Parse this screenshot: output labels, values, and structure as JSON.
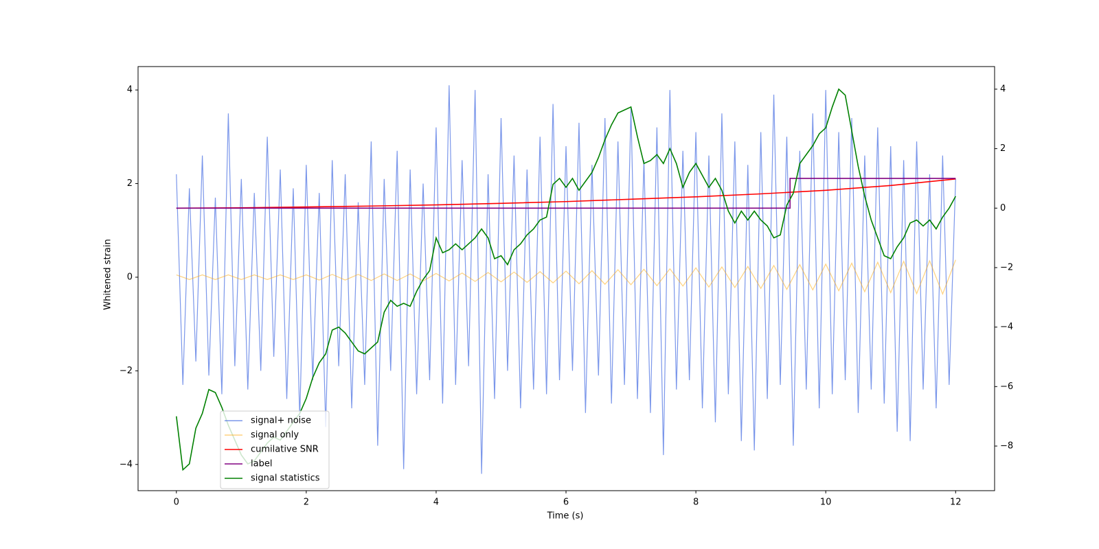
{
  "chart_data": {
    "type": "line",
    "xlabel": "Time (s)",
    "ylabel": "Whitened strain",
    "xlim": [
      -0.59,
      12.6
    ],
    "ylim": [
      -4.56,
      4.5
    ],
    "y2lim": [
      -9.5,
      4.76
    ],
    "xticks": [
      0,
      2,
      4,
      6,
      8,
      10,
      12
    ],
    "yticks": [
      {
        "value": -4,
        "label": "−4"
      },
      {
        "value": -2,
        "label": "−2"
      },
      0,
      2,
      4
    ],
    "y2ticks": [
      {
        "value": -8,
        "label": "−8"
      },
      {
        "value": -6,
        "label": "−6"
      },
      {
        "value": -4,
        "label": "−4"
      },
      {
        "value": -2,
        "label": "−2"
      },
      0,
      2,
      4
    ],
    "legend": "lower left",
    "x": [
      0,
      0.1,
      0.2,
      0.3,
      0.4,
      0.5,
      0.6,
      0.7,
      0.8,
      0.9,
      1,
      1.1,
      1.2,
      1.3,
      1.4,
      1.5,
      1.6,
      1.7,
      1.8,
      1.9,
      2,
      2.1,
      2.2,
      2.3,
      2.4,
      2.5,
      2.6,
      2.7,
      2.8,
      2.9,
      3,
      3.1,
      3.2,
      3.3,
      3.4,
      3.5,
      3.6,
      3.7,
      3.8,
      3.9,
      4,
      4.1,
      4.2,
      4.3,
      4.4,
      4.5,
      4.6,
      4.7,
      4.8,
      4.9,
      5,
      5.1,
      5.2,
      5.3,
      5.4,
      5.5,
      5.6,
      5.7,
      5.8,
      5.9,
      6,
      6.1,
      6.2,
      6.3,
      6.4,
      6.5,
      6.6,
      6.7,
      6.8,
      6.9,
      7,
      7.1,
      7.2,
      7.3,
      7.4,
      7.5,
      7.6,
      7.7,
      7.8,
      7.9,
      8,
      8.1,
      8.2,
      8.3,
      8.4,
      8.5,
      8.6,
      8.7,
      8.8,
      8.9,
      9,
      9.1,
      9.2,
      9.3,
      9.4,
      9.5,
      9.6,
      9.7,
      9.8,
      9.9,
      10,
      10.1,
      10.2,
      10.3,
      10.4,
      10.5,
      10.6,
      10.7,
      10.8,
      10.9,
      11,
      11.1,
      11.2,
      11.3,
      11.4,
      11.5,
      11.6,
      11.7,
      11.8,
      11.9,
      12
    ],
    "series": [
      {
        "name": "signal+ noise",
        "color": "#4169e1",
        "values": [
          2.2,
          -2.3,
          1.9,
          -1.8,
          2.6,
          -2.1,
          1.7,
          -2.5,
          3.5,
          -1.9,
          2.1,
          -2.4,
          1.8,
          -2.0,
          3.0,
          -1.7,
          2.3,
          -2.6,
          1.9,
          -3.0,
          2.4,
          -2.2,
          1.8,
          -3.2,
          2.5,
          -1.9,
          2.2,
          -2.8,
          1.6,
          -2.3,
          2.9,
          -3.6,
          2.1,
          -2.0,
          2.7,
          -4.1,
          2.3,
          -2.5,
          2.0,
          -2.2,
          3.2,
          -2.7,
          4.1,
          -2.3,
          2.5,
          -1.9,
          4.0,
          -4.2,
          2.2,
          -2.6,
          3.4,
          -2.0,
          2.6,
          -2.8,
          2.3,
          -2.4,
          3.0,
          -2.5,
          3.7,
          -2.2,
          2.8,
          -2.0,
          3.3,
          -2.9,
          2.4,
          -2.1,
          3.4,
          -2.7,
          2.9,
          -2.3,
          3.6,
          -2.6,
          2.5,
          -2.9,
          3.2,
          -3.8,
          4.0,
          -2.4,
          2.7,
          -2.2,
          3.1,
          -2.8,
          2.6,
          -3.1,
          3.5,
          -2.5,
          2.9,
          -3.5,
          2.4,
          -3.7,
          3.1,
          -2.6,
          3.9,
          -2.3,
          3.0,
          -3.6,
          2.7,
          -2.4,
          3.5,
          -2.8,
          4.0,
          -2.5,
          3.1,
          -2.2,
          3.4,
          -2.9,
          2.6,
          -2.4,
          3.2,
          -2.7,
          2.8,
          -3.3,
          2.5,
          -3.5,
          2.9,
          -2.4,
          2.2,
          -2.8,
          2.6,
          -2.3,
          2.1
        ]
      },
      {
        "name": "signal only",
        "color": "#ffa500",
        "x": [
          0,
          0.2,
          0.4,
          0.6,
          0.8,
          1,
          1.2,
          1.4,
          1.6,
          1.8,
          2,
          2.2,
          2.4,
          2.6,
          2.8,
          3,
          3.2,
          3.4,
          3.6,
          3.8,
          4,
          4.2,
          4.4,
          4.6,
          4.8,
          5,
          5.2,
          5.4,
          5.6,
          5.8,
          6,
          6.2,
          6.4,
          6.6,
          6.8,
          7,
          7.2,
          7.4,
          7.6,
          7.8,
          8,
          8.2,
          8.4,
          8.6,
          8.8,
          9,
          9.2,
          9.4,
          9.6,
          9.8,
          10,
          10.2,
          10.4,
          10.6,
          10.8,
          11,
          11.2,
          11.4,
          11.6,
          11.8,
          12
        ],
        "values": [
          0.05,
          -0.05,
          0.05,
          -0.05,
          0.05,
          -0.05,
          0.05,
          -0.05,
          0.05,
          -0.05,
          0.05,
          -0.06,
          0.06,
          -0.06,
          0.06,
          -0.07,
          0.07,
          -0.07,
          0.07,
          -0.08,
          0.08,
          -0.08,
          0.09,
          -0.09,
          0.1,
          -0.1,
          0.11,
          -0.11,
          0.12,
          -0.12,
          0.13,
          -0.14,
          0.14,
          -0.15,
          0.16,
          -0.16,
          0.17,
          -0.18,
          0.18,
          -0.19,
          0.2,
          -0.21,
          0.22,
          -0.22,
          0.23,
          -0.24,
          0.25,
          -0.26,
          0.27,
          -0.27,
          0.28,
          -0.29,
          0.3,
          -0.31,
          0.32,
          -0.33,
          0.34,
          -0.35,
          0.35,
          -0.36,
          0.37
        ]
      },
      {
        "name": "cumilative SNR",
        "color": "#ff0000",
        "axis": "y2",
        "x": [
          0,
          1,
          2,
          3,
          4,
          5,
          6,
          7,
          8,
          9,
          10,
          11,
          12
        ],
        "values": [
          0,
          0.01,
          0.04,
          0.07,
          0.11,
          0.16,
          0.22,
          0.3,
          0.38,
          0.48,
          0.6,
          0.76,
          0.98
        ]
      },
      {
        "name": "label",
        "color": "#800080",
        "axis": "y2",
        "x": [
          0,
          9.45,
          9.45,
          12
        ],
        "values": [
          0,
          0,
          1,
          1
        ]
      },
      {
        "name": "signal statistics",
        "color": "#008000",
        "axis": "y2",
        "values": [
          -7.0,
          -8.8,
          -8.6,
          -7.4,
          -6.9,
          -6.1,
          -6.2,
          -6.7,
          -7.3,
          -7.8,
          -8.3,
          -8.6,
          -8.5,
          -8.2,
          -7.9,
          -7.7,
          -7.8,
          -7.5,
          -7.2,
          -6.9,
          -6.4,
          -5.7,
          -5.2,
          -4.9,
          -4.1,
          -4.0,
          -4.2,
          -4.5,
          -4.8,
          -4.9,
          -4.7,
          -4.5,
          -3.5,
          -3.1,
          -3.3,
          -3.2,
          -3.3,
          -2.8,
          -2.4,
          -2.1,
          -1.0,
          -1.5,
          -1.4,
          -1.2,
          -1.4,
          -1.2,
          -1.0,
          -0.7,
          -1.0,
          -1.7,
          -1.6,
          -1.9,
          -1.4,
          -1.2,
          -0.9,
          -0.7,
          -0.4,
          -0.3,
          0.8,
          1.0,
          0.7,
          1.0,
          0.6,
          0.9,
          1.2,
          1.7,
          2.3,
          2.8,
          3.2,
          3.3,
          3.4,
          2.4,
          1.5,
          1.6,
          1.8,
          1.5,
          2.0,
          1.5,
          0.7,
          1.2,
          1.5,
          1.1,
          0.7,
          1.0,
          0.6,
          -0.1,
          -0.5,
          -0.1,
          -0.4,
          -0.1,
          -0.4,
          -0.6,
          -1.0,
          -0.9,
          0.1,
          0.5,
          1.5,
          1.8,
          2.1,
          2.5,
          2.7,
          3.4,
          4.0,
          3.8,
          2.6,
          1.4,
          0.4,
          -0.4,
          -1.0,
          -1.6,
          -1.7,
          -1.3,
          -1.0,
          -0.5,
          -0.4,
          -0.6,
          -0.4,
          -0.7,
          -0.3,
          0.0,
          0.4
        ]
      }
    ]
  }
}
